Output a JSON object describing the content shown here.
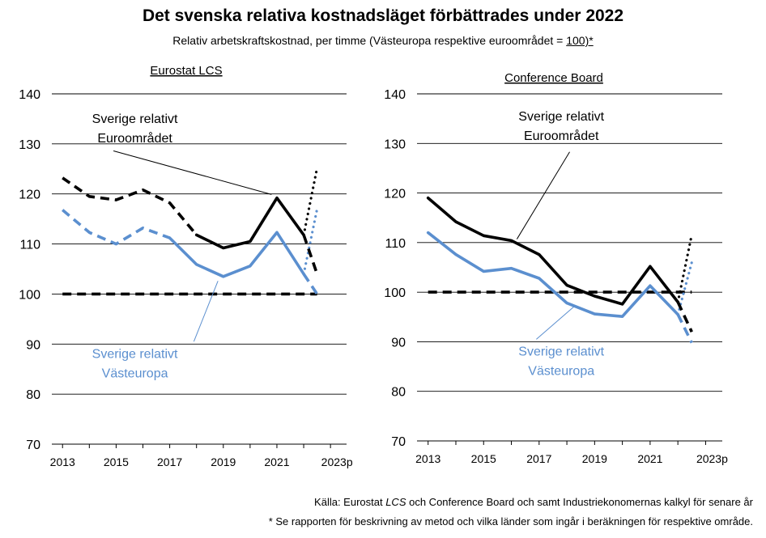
{
  "title": "Det svenska relativa kostnadsläget förbättrades under 2022",
  "subtitle_pre": "Relativ arbetskraftskostnad, per timme (Västeuropa respektive euroområdet = ",
  "subtitle_link": "100)*",
  "source_pre": "Källa: Eurostat ",
  "source_italic": "LCS",
  "source_post": " och Conference Board och samt Industriekonomernas kalkyl för senare år",
  "note": "* Se rapporten för beskrivning av metod och vilka länder som ingår i beräkningen för respektive område.",
  "colors": {
    "euro": "#000000",
    "west": "#5b8fcf",
    "grid": "#000000"
  },
  "chart_data": [
    {
      "type": "line",
      "panel_title": "Eurostat LCS",
      "x": [
        2013,
        2014,
        2015,
        2016,
        2017,
        2018,
        2019,
        2020,
        2021,
        2022,
        2023
      ],
      "x_tick_labels": [
        "2013",
        "2015",
        "2017",
        "2019",
        "2021",
        "2023p"
      ],
      "x_ticks": [
        2013,
        2015,
        2017,
        2019,
        2021,
        2023
      ],
      "ylim": [
        70,
        140
      ],
      "y_ticks": [
        70,
        80,
        90,
        100,
        110,
        120,
        130,
        140
      ],
      "grid": true,
      "series": [
        {
          "name": "Sverige relativt Euroområdet",
          "color": "euro",
          "segments": [
            {
              "style": "dashed",
              "points": [
                [
                  2013,
                  123.2
                ],
                [
                  2014,
                  119.5
                ],
                [
                  2015,
                  118.8
                ],
                [
                  2016,
                  120.8
                ],
                [
                  2017,
                  118.2
                ],
                [
                  2018,
                  111.8
                ]
              ]
            },
            {
              "style": "solid",
              "points": [
                [
                  2018,
                  111.8
                ],
                [
                  2019,
                  109.2
                ],
                [
                  2020,
                  110.5
                ],
                [
                  2021,
                  119.2
                ],
                [
                  2022,
                  111.8
                ]
              ]
            },
            {
              "style": "dashed",
              "points": [
                [
                  2022,
                  111.8
                ],
                [
                  2022.5,
                  104
                ]
              ]
            },
            {
              "style": "dotted",
              "points": [
                [
                  2022,
                  111.8
                ],
                [
                  2022.5,
                  125.2
                ]
              ]
            }
          ]
        },
        {
          "name": "Sverige relativt Västeuropa",
          "color": "west",
          "segments": [
            {
              "style": "dashed",
              "points": [
                [
                  2013,
                  116.8
                ],
                [
                  2014,
                  112.3
                ],
                [
                  2015,
                  110
                ],
                [
                  2016,
                  113.2
                ],
                [
                  2017,
                  111.2
                ]
              ]
            },
            {
              "style": "solid",
              "points": [
                [
                  2017,
                  111.2
                ],
                [
                  2018,
                  105.9
                ],
                [
                  2019,
                  103.5
                ],
                [
                  2020,
                  105.6
                ],
                [
                  2021,
                  112.3
                ],
                [
                  2022,
                  104
                ]
              ]
            },
            {
              "style": "dashed",
              "points": [
                [
                  2022,
                  104
                ],
                [
                  2022.5,
                  100
                ]
              ]
            },
            {
              "style": "dotted",
              "points": [
                [
                  2022,
                  104
                ],
                [
                  2022.5,
                  117
                ]
              ]
            }
          ]
        },
        {
          "name": "Referens",
          "color": "euro",
          "segments": [
            {
              "style": "dashed",
              "points": [
                [
                  2013,
                  100
                ],
                [
                  2022.5,
                  100
                ]
              ]
            }
          ]
        }
      ],
      "annotations": [
        {
          "lines": [
            "Sverige relativt",
            "Euroområdet"
          ],
          "color": "euro",
          "anchor": [
            2015.7,
            134.2
          ],
          "pointer_from": [
            2014.9,
            128.6
          ],
          "pointer_to": [
            2020.8,
            119.9
          ]
        },
        {
          "lines": [
            "Sverige relativt",
            "Västeuropa"
          ],
          "color": "west",
          "anchor": [
            2015.7,
            87.2
          ],
          "pointer_from": [
            2017.9,
            90.5
          ],
          "pointer_to": [
            2018.8,
            102.6
          ]
        }
      ]
    },
    {
      "type": "line",
      "panel_title": "Conference Board",
      "x": [
        2013,
        2014,
        2015,
        2016,
        2017,
        2018,
        2019,
        2020,
        2021,
        2022,
        2023
      ],
      "x_tick_labels": [
        "2013",
        "2015",
        "2017",
        "2019",
        "2021",
        "2023p"
      ],
      "x_ticks": [
        2013,
        2015,
        2017,
        2019,
        2021,
        2023
      ],
      "ylim": [
        70,
        140
      ],
      "y_ticks": [
        70,
        80,
        90,
        100,
        110,
        120,
        130,
        140
      ],
      "grid": true,
      "series": [
        {
          "name": "Sverige relativt Euroområdet",
          "color": "euro",
          "segments": [
            {
              "style": "solid",
              "points": [
                [
                  2013,
                  119
                ],
                [
                  2014,
                  114.2
                ],
                [
                  2015,
                  111.4
                ],
                [
                  2016,
                  110.4
                ],
                [
                  2017,
                  107.6
                ],
                [
                  2018,
                  101.4
                ],
                [
                  2019,
                  99.2
                ],
                [
                  2020,
                  97.6
                ],
                [
                  2021,
                  105.2
                ],
                [
                  2022,
                  98
                ]
              ]
            },
            {
              "style": "dashed",
              "points": [
                [
                  2022,
                  98
                ],
                [
                  2022.5,
                  92
                ]
              ]
            },
            {
              "style": "dotted",
              "points": [
                [
                  2022,
                  98
                ],
                [
                  2022.5,
                  111.6
                ]
              ]
            }
          ]
        },
        {
          "name": "Sverige relativt Västeuropa",
          "color": "west",
          "segments": [
            {
              "style": "solid",
              "points": [
                [
                  2013,
                  112
                ],
                [
                  2014,
                  107.6
                ],
                [
                  2015,
                  104.2
                ],
                [
                  2016,
                  104.8
                ],
                [
                  2017,
                  102.8
                ],
                [
                  2018,
                  97.8
                ],
                [
                  2019,
                  95.6
                ],
                [
                  2020,
                  95.1
                ],
                [
                  2021,
                  101.3
                ],
                [
                  2022,
                  95.5
                ]
              ]
            },
            {
              "style": "dashed",
              "points": [
                [
                  2022,
                  95.5
                ],
                [
                  2022.5,
                  89.8
                ]
              ]
            },
            {
              "style": "dotted",
              "points": [
                [
                  2022,
                  95.5
                ],
                [
                  2022.5,
                  106
                ]
              ]
            }
          ]
        },
        {
          "name": "Referens",
          "color": "euro",
          "segments": [
            {
              "style": "dashed",
              "points": [
                [
                  2013,
                  100
                ],
                [
                  2022.5,
                  100
                ]
              ]
            }
          ]
        }
      ],
      "annotations": [
        {
          "lines": [
            "Sverige relativt",
            "Euroområdet"
          ],
          "color": "euro",
          "anchor": [
            2017.8,
            134.6
          ],
          "pointer_from": [
            2018.1,
            128.3
          ],
          "pointer_to": [
            2016.2,
            110.7
          ]
        },
        {
          "lines": [
            "Sverige relativt",
            "Västeuropa"
          ],
          "color": "west",
          "anchor": [
            2017.8,
            87.2
          ],
          "pointer_from": [
            2016.9,
            90.5
          ],
          "pointer_to": [
            2018.3,
            97.3
          ]
        }
      ]
    }
  ]
}
